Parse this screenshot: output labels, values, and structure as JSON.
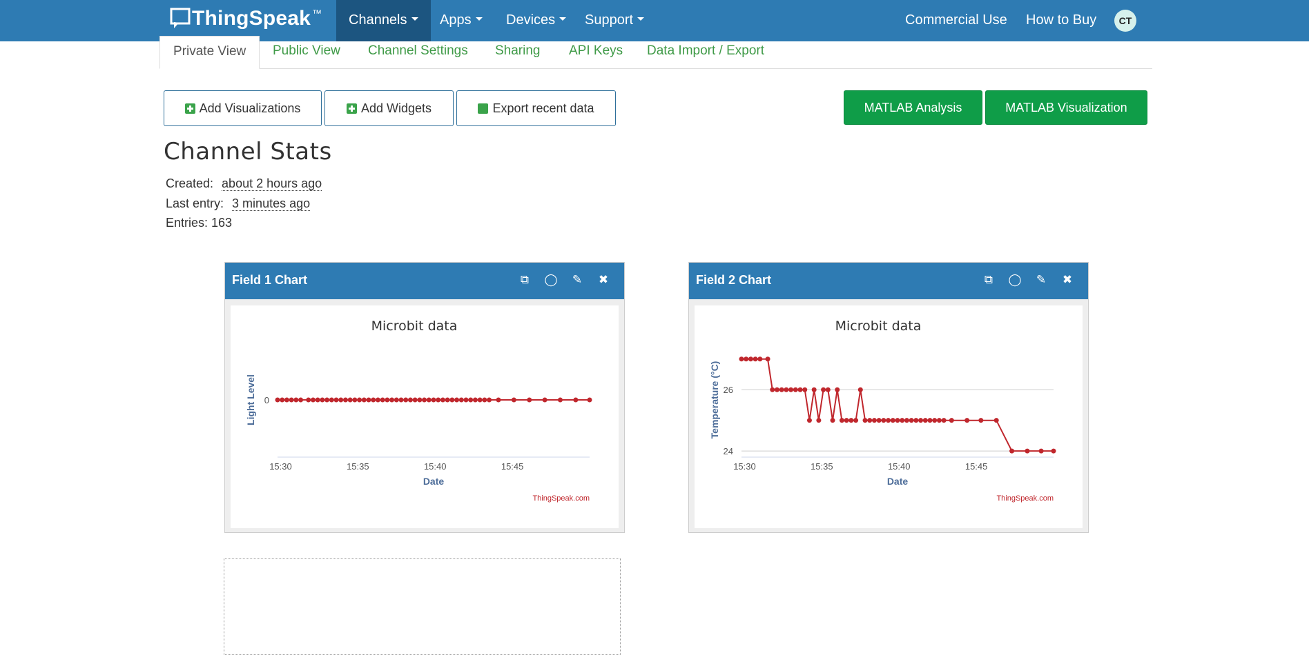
{
  "app": {
    "logo_text": "ThingSpeak",
    "logo_tm": "™"
  },
  "nav": {
    "items": [
      {
        "label": "Channels",
        "caret": true
      },
      {
        "label": "Apps",
        "caret": true
      },
      {
        "label": "Devices",
        "caret": true
      },
      {
        "label": "Support",
        "caret": true
      }
    ],
    "right": [
      "Commercial Use",
      "How to Buy"
    ],
    "avatar_initials": "CT"
  },
  "tabs": [
    "Private View",
    "Public View",
    "Channel Settings",
    "Sharing",
    "API Keys",
    "Data Import / Export"
  ],
  "actions": {
    "add_visualizations": "Add Visualizations",
    "add_widgets": "Add Widgets",
    "export_recent": "Export recent data",
    "matlab_analysis": "MATLAB Analysis",
    "matlab_visualization": "MATLAB Visualization"
  },
  "stats": {
    "title": "Channel Stats",
    "created_label": "Created:",
    "created_value": "about 2 hours ago",
    "last_entry_label": "Last entry:",
    "last_entry_value": "3 minutes ago",
    "entries_label": "Entries: 163"
  },
  "colors": {
    "nav_bg": "#2e7bb3",
    "nav_active": "#1c5580",
    "green": "#0f9d48",
    "tab_green": "#3f9a47",
    "series": "#c0272d"
  },
  "panels": [
    {
      "title": "Field 1 Chart",
      "icons": [
        "external-link-icon",
        "comment-icon",
        "pencil-icon",
        "close-icon"
      ]
    },
    {
      "title": "Field 2 Chart",
      "icons": [
        "external-link-icon",
        "comment-icon",
        "pencil-icon",
        "close-icon"
      ]
    }
  ],
  "chart_data": [
    {
      "type": "line",
      "title": "Microbit data",
      "xlabel": "Date",
      "ylabel": "Light Level",
      "credit": "ThingSpeak.com",
      "x_ticks": [
        "15:30",
        "15:35",
        "15:40",
        "15:45"
      ],
      "y_ticks": [
        0
      ],
      "xlim": [
        29.8,
        50.0
      ],
      "x": [
        29.8,
        30.1,
        30.4,
        30.7,
        31.0,
        31.3,
        31.8,
        32.1,
        32.4,
        32.7,
        33.0,
        33.3,
        33.6,
        33.9,
        34.2,
        34.5,
        34.8,
        35.1,
        35.4,
        35.7,
        36.0,
        36.3,
        36.6,
        36.9,
        37.2,
        37.5,
        37.8,
        38.1,
        38.4,
        38.7,
        39.0,
        39.3,
        39.6,
        39.9,
        40.2,
        40.5,
        40.8,
        41.1,
        41.4,
        41.7,
        42.0,
        42.3,
        42.6,
        42.9,
        43.2,
        43.5,
        44.1,
        45.1,
        46.1,
        47.1,
        48.1,
        49.1,
        50.0
      ],
      "values": [
        0,
        0,
        0,
        0,
        0,
        0,
        0,
        0,
        0,
        0,
        0,
        0,
        0,
        0,
        0,
        0,
        0,
        0,
        0,
        0,
        0,
        0,
        0,
        0,
        0,
        0,
        0,
        0,
        0,
        0,
        0,
        0,
        0,
        0,
        0,
        0,
        0,
        0,
        0,
        0,
        0,
        0,
        0,
        0,
        0,
        0,
        0,
        0,
        0,
        0,
        0,
        0,
        0
      ]
    },
    {
      "type": "line",
      "title": "Microbit data",
      "xlabel": "Date",
      "ylabel": "Temperature (°C)",
      "credit": "ThingSpeak.com",
      "x_ticks": [
        "15:30",
        "15:35",
        "15:40",
        "15:45"
      ],
      "y_ticks": [
        24,
        26
      ],
      "ylim": [
        23.8,
        27.4
      ],
      "xlim": [
        29.8,
        50.0
      ],
      "x": [
        29.8,
        30.1,
        30.4,
        30.7,
        31.0,
        31.5,
        31.8,
        32.1,
        32.4,
        32.7,
        33.0,
        33.3,
        33.6,
        33.9,
        34.2,
        34.5,
        34.8,
        35.1,
        35.4,
        35.7,
        36.0,
        36.3,
        36.6,
        36.9,
        37.2,
        37.5,
        37.8,
        38.1,
        38.4,
        38.7,
        39.0,
        39.3,
        39.6,
        39.9,
        40.2,
        40.5,
        40.8,
        41.1,
        41.4,
        41.7,
        42.0,
        42.3,
        42.6,
        42.9,
        43.4,
        44.4,
        45.3,
        46.3,
        47.3,
        48.3,
        49.2,
        50.0
      ],
      "values": [
        27,
        27,
        27,
        27,
        27,
        27,
        26,
        26,
        26,
        26,
        26,
        26,
        26,
        26,
        25,
        26,
        25,
        26,
        26,
        25,
        26,
        25,
        25,
        25,
        25,
        26,
        25,
        25,
        25,
        25,
        25,
        25,
        25,
        25,
        25,
        25,
        25,
        25,
        25,
        25,
        25,
        25,
        25,
        25,
        25,
        25,
        25,
        25,
        24,
        24,
        24,
        24
      ]
    }
  ]
}
